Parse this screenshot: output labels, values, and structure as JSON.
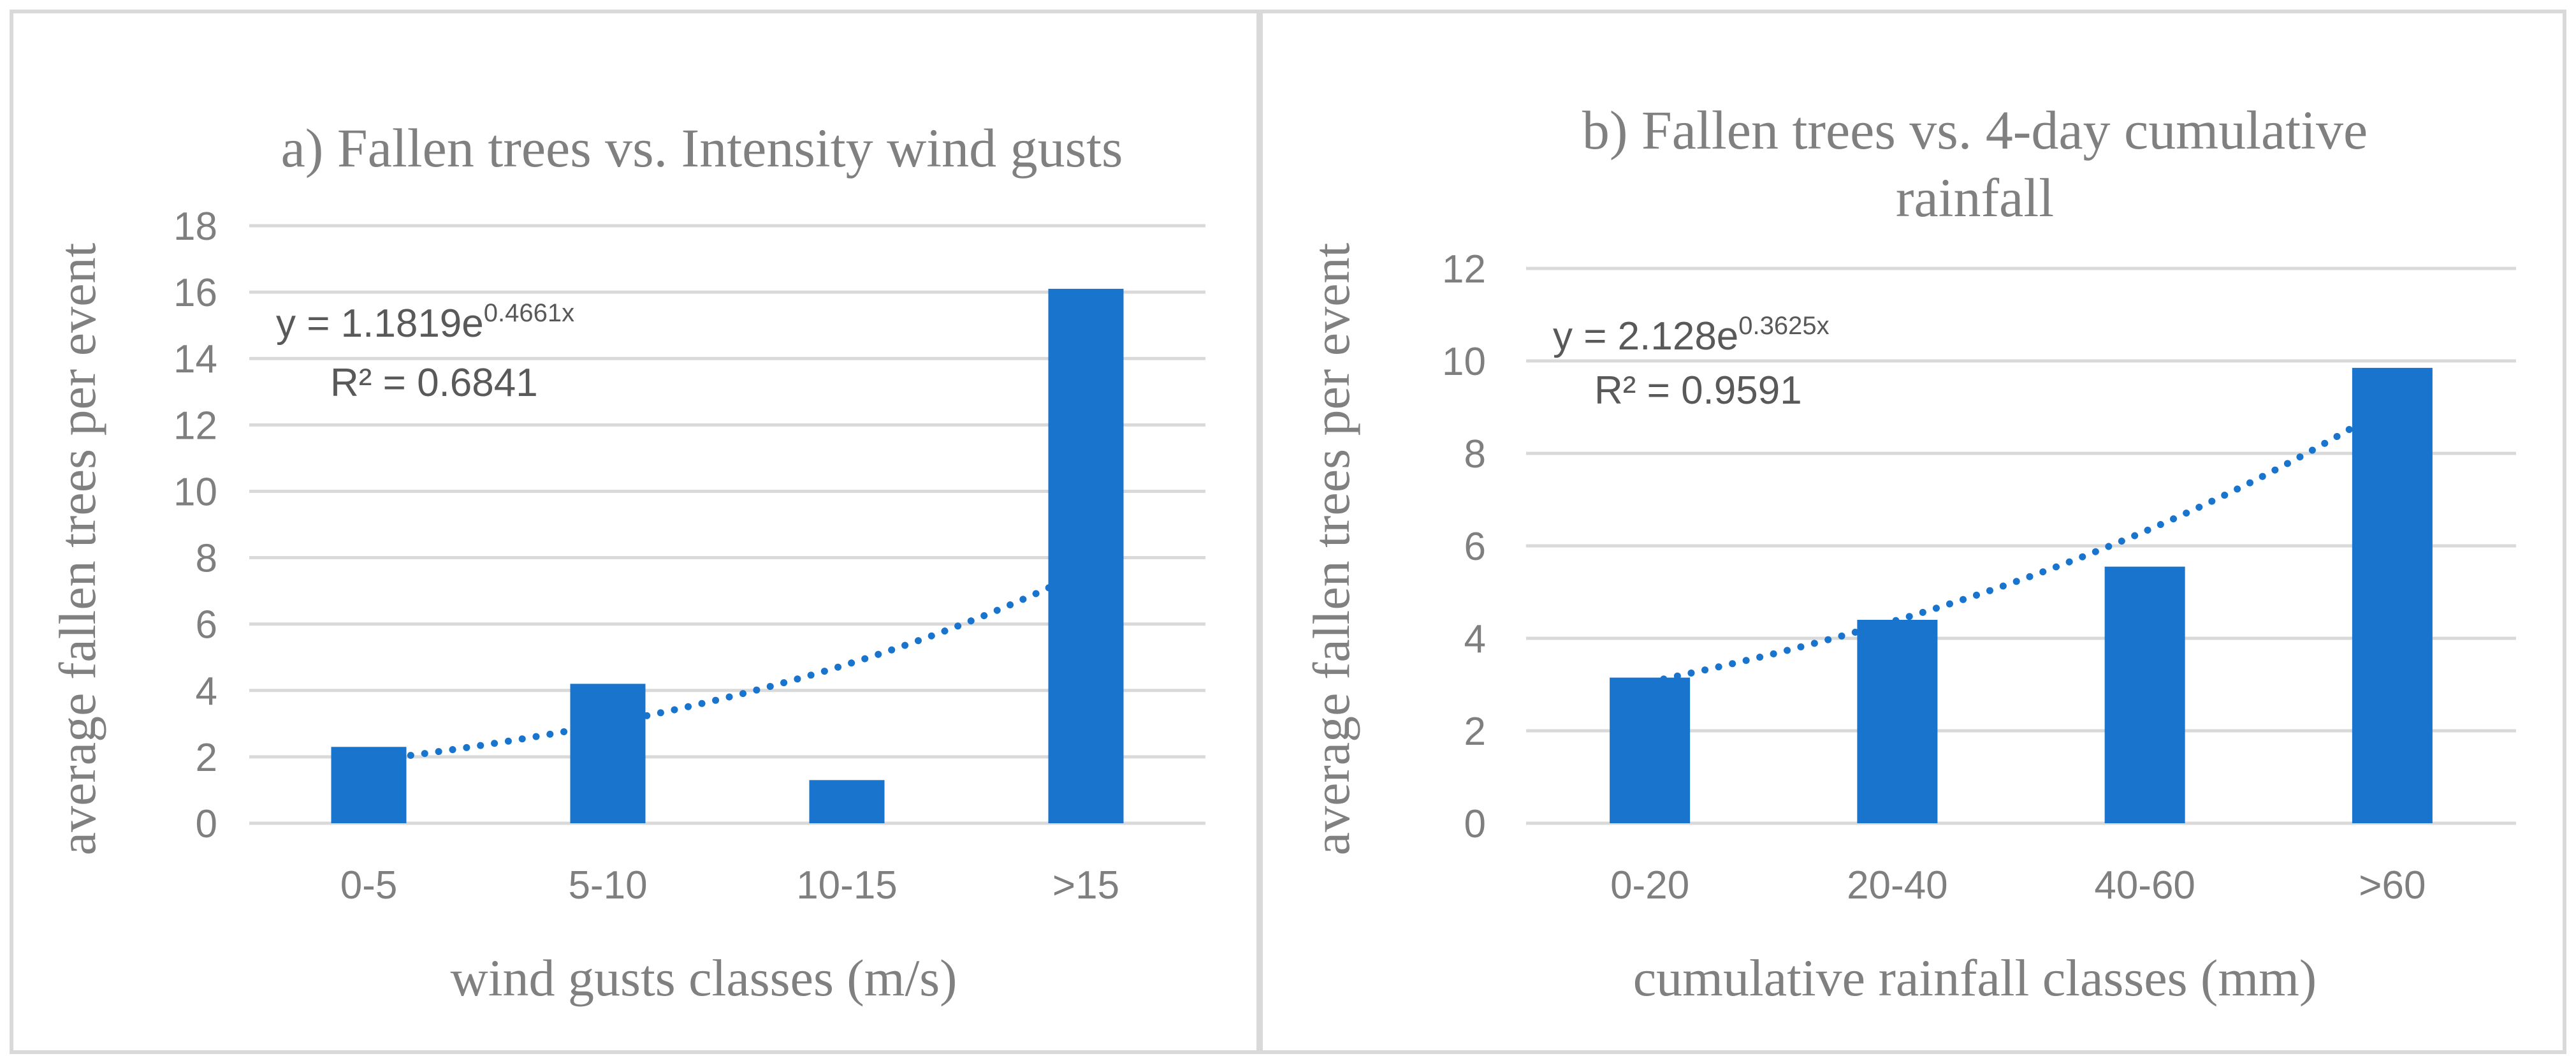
{
  "bar_color": "#1874cd",
  "trend_color": "#1874cd",
  "chart_data": [
    {
      "type": "bar",
      "title": "a) Fallen trees vs. Intensity wind gusts",
      "xlabel": "wind gusts classes (m/s)",
      "ylabel": "average fallen trees per event",
      "categories": [
        "0-5",
        "5-10",
        "10-15",
        ">15"
      ],
      "values": [
        2.3,
        4.2,
        1.3,
        16.1
      ],
      "ylim": [
        0,
        18
      ],
      "yticks": [
        "0",
        "2",
        "4",
        "6",
        "8",
        "10",
        "12",
        "14",
        "16",
        "18"
      ],
      "grid": true,
      "trendline": {
        "type": "exponential",
        "a": 1.1819,
        "b": 0.4661,
        "eq_base": "y = 1.1819e",
        "eq_exp": "0.4661x",
        "r2": "R² = 0.6841"
      }
    },
    {
      "type": "bar",
      "title_lines": [
        "b) Fallen trees vs. 4-day cumulative",
        "rainfall"
      ],
      "xlabel": "cumulative rainfall classes (mm)",
      "ylabel": "average fallen trees per event",
      "categories": [
        "0-20",
        "20-40",
        "40-60",
        ">60"
      ],
      "values": [
        3.15,
        4.4,
        5.55,
        9.85
      ],
      "ylim": [
        0,
        12
      ],
      "yticks": [
        "0",
        "2",
        "4",
        "6",
        "8",
        "10",
        "12"
      ],
      "grid": true,
      "trendline": {
        "type": "exponential",
        "a": 2.128,
        "b": 0.3625,
        "eq_base": "y = 2.128e",
        "eq_exp": "0.3625x",
        "r2": "R² = 0.9591"
      }
    }
  ]
}
